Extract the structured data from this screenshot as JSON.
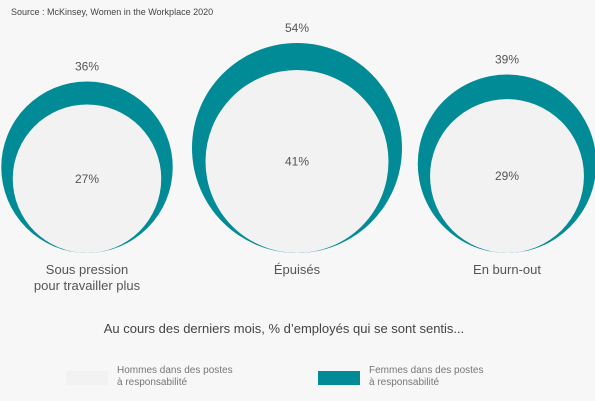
{
  "source": "Source : McKinsey, Women in the Workplace 2020",
  "chart_data": {
    "type": "bubble",
    "subtitle": "Au cours des derniers mois, % d’employés qui se sont sentis...",
    "categories": [
      [
        "Sous pression",
        "pour travailler plus"
      ],
      [
        "Épuisés"
      ],
      [
        "En burn-out"
      ]
    ],
    "series": [
      {
        "name": "Hommes dans des postes à responsabilité",
        "legend_lines": [
          "Hommes dans des postes",
          "à responsabilité"
        ],
        "values": [
          27,
          41,
          29
        ],
        "labels": [
          "27%",
          "41%",
          "29%"
        ],
        "color": "#f2f2f2"
      },
      {
        "name": "Femmes dans des postes à responsabilité",
        "legend_lines": [
          "Femmes dans des postes",
          "à responsabilité"
        ],
        "values": [
          36,
          54,
          39
        ],
        "labels": [
          "36%",
          "54%",
          "39%"
        ],
        "color": "#008b96"
      }
    ],
    "units": "%"
  }
}
